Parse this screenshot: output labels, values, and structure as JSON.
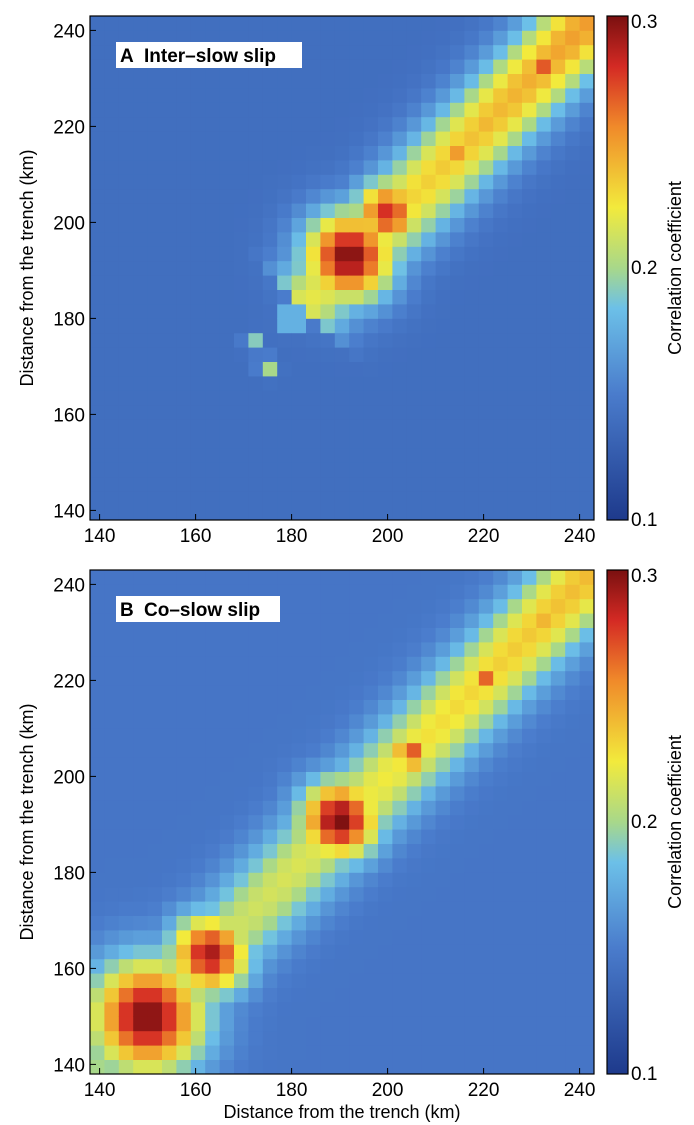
{
  "chart_data": [
    {
      "type": "heatmap",
      "panel_label": "A",
      "title": "Inter–slow slip",
      "xlabel": "",
      "ylabel": "Distance from the trench (km)",
      "xlim": [
        138,
        243
      ],
      "ylim": [
        138,
        243
      ],
      "xticks": [
        140,
        160,
        180,
        200,
        220,
        240
      ],
      "yticks": [
        140,
        160,
        180,
        200,
        220,
        240
      ],
      "colorbar": {
        "label": "Correlation coefficient",
        "min": 0.1,
        "max": 0.3,
        "ticks": [
          0.1,
          0.2,
          0.3
        ]
      },
      "background_value": 0.14,
      "features": [
        {
          "kind": "diagonal_ridge",
          "from_km": 184,
          "to_km": 242,
          "value_start": 0.22,
          "value_end": 0.25,
          "half_width_km": 9
        },
        {
          "kind": "hotspot",
          "x": 192,
          "y": 193,
          "radius_km": 8,
          "value": 0.3
        },
        {
          "kind": "hotspot",
          "x": 200,
          "y": 202,
          "radius_km": 6,
          "value": 0.28
        },
        {
          "kind": "hotspot",
          "x": 215,
          "y": 215,
          "radius_km": 2,
          "value": 0.26
        },
        {
          "kind": "hotspot",
          "x": 221,
          "y": 221,
          "radius_km": 2,
          "value": 0.25
        },
        {
          "kind": "hotspot",
          "x": 233,
          "y": 233,
          "radius_km": 2,
          "value": 0.28
        },
        {
          "kind": "hotspot",
          "x": 241,
          "y": 240,
          "radius_km": 2,
          "value": 0.25
        },
        {
          "kind": "hotspot",
          "x": 180,
          "y": 180,
          "radius_km": 2,
          "value": 0.22
        },
        {
          "kind": "hotspot",
          "x": 172,
          "y": 175,
          "radius_km": 1.5,
          "value": 0.2
        },
        {
          "kind": "hotspot",
          "x": 175,
          "y": 170,
          "radius_km": 1.5,
          "value": 0.21
        }
      ]
    },
    {
      "type": "heatmap",
      "panel_label": "B",
      "title": "Co–slow slip",
      "xlabel": "Distance from the trench (km)",
      "ylabel": "Distance from the trench (km)",
      "xlim": [
        138,
        243
      ],
      "ylim": [
        138,
        243
      ],
      "xticks": [
        140,
        160,
        180,
        200,
        220,
        240
      ],
      "yticks": [
        140,
        160,
        180,
        200,
        220,
        240
      ],
      "colorbar": {
        "label": "Correlation coefficient",
        "min": 0.1,
        "max": 0.3,
        "ticks": [
          0.1,
          0.2,
          0.3
        ]
      },
      "background_value": 0.145,
      "features": [
        {
          "kind": "diagonal_ridge",
          "from_km": 140,
          "to_km": 242,
          "value_start": 0.2,
          "value_end": 0.24,
          "half_width_km": 9
        },
        {
          "kind": "hotspot",
          "x": 150,
          "y": 150,
          "radius_km": 10,
          "value": 0.3
        },
        {
          "kind": "hotspot",
          "x": 163,
          "y": 163,
          "radius_km": 7,
          "value": 0.29
        },
        {
          "kind": "hotspot",
          "x": 190,
          "y": 191,
          "radius_km": 7,
          "value": 0.3
        },
        {
          "kind": "hotspot",
          "x": 205,
          "y": 205,
          "radius_km": 4,
          "value": 0.27
        },
        {
          "kind": "hotspot",
          "x": 220,
          "y": 220,
          "radius_km": 3,
          "value": 0.27
        },
        {
          "kind": "hotspot",
          "x": 233,
          "y": 233,
          "radius_km": 2,
          "value": 0.25
        }
      ]
    }
  ]
}
